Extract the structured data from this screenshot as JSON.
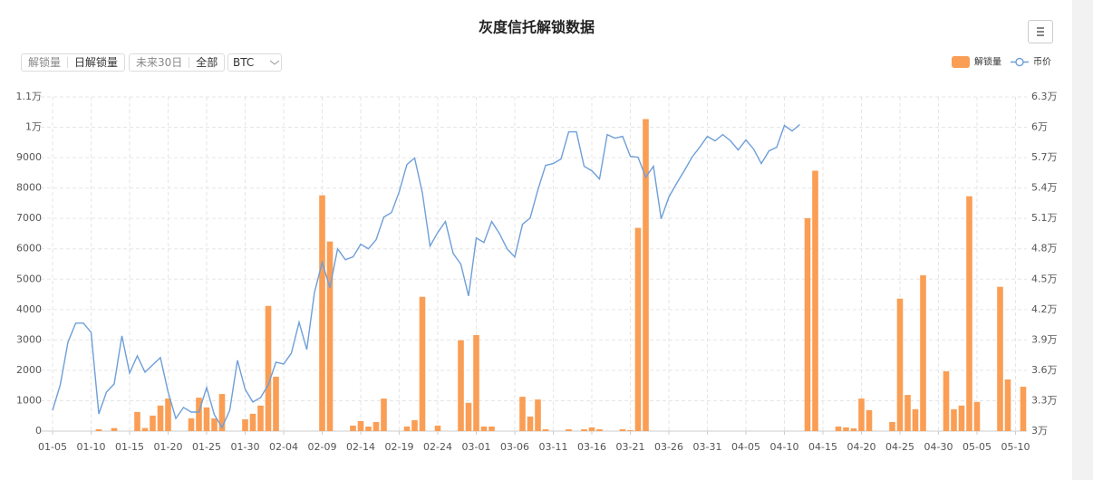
{
  "controls": {
    "unit_options": [
      "解锁量",
      "日解锁量"
    ],
    "range_options": [
      "未来30日",
      "全部"
    ],
    "coin": "BTC"
  },
  "chart_data": {
    "type": "combo",
    "title": "灰度信托解锁数据",
    "grid": true,
    "legend": "top-right",
    "categories": [
      "01-05",
      null,
      null,
      null,
      null,
      "01-10",
      null,
      null,
      null,
      null,
      "01-15",
      null,
      null,
      null,
      null,
      "01-20",
      null,
      null,
      null,
      null,
      "01-25",
      null,
      null,
      null,
      null,
      "01-30",
      null,
      null,
      null,
      null,
      "02-04",
      null,
      null,
      null,
      null,
      "02-09",
      null,
      null,
      null,
      null,
      "02-14",
      null,
      null,
      null,
      null,
      "02-19",
      null,
      null,
      null,
      null,
      "02-24",
      null,
      null,
      null,
      null,
      "03-01",
      null,
      null,
      null,
      null,
      "03-06",
      null,
      null,
      null,
      null,
      "03-11",
      null,
      null,
      null,
      null,
      "03-16",
      null,
      null,
      null,
      null,
      "03-21",
      null,
      null,
      null,
      null,
      "03-26",
      null,
      null,
      null,
      null,
      "03-31",
      null,
      null,
      null,
      null,
      "04-05",
      null,
      null,
      null,
      null,
      "04-10",
      null,
      null,
      null,
      null,
      "04-15",
      null,
      null,
      null,
      null,
      "04-20",
      null,
      null,
      null,
      null,
      "04-25",
      null,
      null,
      null,
      null,
      "04-30",
      null,
      null,
      null,
      null,
      "05-05",
      null,
      null,
      null,
      null,
      "05-10",
      null
    ],
    "ylim": [
      0,
      11000
    ],
    "yticks": [
      0,
      1000,
      2000,
      3000,
      4000,
      5000,
      6000,
      7000,
      8000,
      9000,
      {
        "value": 10000,
        "label": "1万"
      },
      {
        "value": 11000,
        "label": "1.1万"
      }
    ],
    "y2lim": [
      30000,
      63000
    ],
    "y2ticks": [
      {
        "value": 30000,
        "label": "3万"
      },
      {
        "value": 33000,
        "label": "3.3万"
      },
      {
        "value": 36000,
        "label": "3.6万"
      },
      {
        "value": 39000,
        "label": "3.9万"
      },
      {
        "value": 42000,
        "label": "4.2万"
      },
      {
        "value": 45000,
        "label": "4.5万"
      },
      {
        "value": 48000,
        "label": "4.8万"
      },
      {
        "value": 51000,
        "label": "5.1万"
      },
      {
        "value": 54000,
        "label": "5.4万"
      },
      {
        "value": 57000,
        "label": "5.7万"
      },
      {
        "value": 60000,
        "label": "6万"
      },
      {
        "value": 63000,
        "label": "6.3万"
      }
    ],
    "series": [
      {
        "name": "解锁量",
        "type": "bar",
        "color": "#fa9e55",
        "values": [
          0,
          0,
          0,
          0,
          0,
          0,
          60,
          0,
          100,
          0,
          0,
          630,
          100,
          510,
          840,
          1070,
          0,
          0,
          420,
          1100,
          780,
          420,
          1220,
          0,
          0,
          390,
          570,
          840,
          4120,
          1790,
          0,
          0,
          0,
          0,
          0,
          7760,
          6240,
          0,
          0,
          180,
          330,
          150,
          300,
          1070,
          0,
          0,
          150,
          360,
          4420,
          0,
          180,
          0,
          0,
          2990,
          930,
          3160,
          150,
          150,
          0,
          0,
          0,
          1130,
          480,
          1040,
          60,
          0,
          0,
          60,
          0,
          60,
          120,
          60,
          0,
          0,
          60,
          30,
          6690,
          10270,
          0,
          0,
          0,
          0,
          0,
          0,
          0,
          0,
          0,
          0,
          0,
          0,
          0,
          0,
          0,
          0,
          0,
          0,
          0,
          0,
          7010,
          8570,
          0,
          0,
          150,
          120,
          90,
          1070,
          690,
          0,
          0,
          300,
          4360,
          1190,
          720,
          5130,
          0,
          0,
          1970,
          720,
          840,
          7730,
          960,
          0,
          0,
          4750,
          1700,
          0,
          1460
        ]
      },
      {
        "name": "币价",
        "type": "line",
        "axis": "y2",
        "color": "#6e9fd8",
        "values": [
          32060,
          34570,
          38780,
          40660,
          40660,
          39760,
          31700,
          33850,
          34660,
          39400,
          35730,
          37430,
          35820,
          36540,
          37250,
          33850,
          31250,
          32330,
          31880,
          31880,
          34300,
          31610,
          30360,
          32060,
          36990,
          34120,
          32870,
          33310,
          34570,
          36810,
          36630,
          37700,
          40750,
          38060,
          43700,
          46660,
          44150,
          48000,
          46930,
          47200,
          48450,
          48000,
          48900,
          51140,
          51580,
          53640,
          56330,
          56960,
          53550,
          48270,
          49610,
          50690,
          47550,
          46480,
          43340,
          49070,
          48630,
          50690,
          49520,
          48000,
          47200,
          50420,
          51050,
          53820,
          56240,
          56420,
          56870,
          59550,
          59550,
          56150,
          55700,
          54900,
          59280,
          58930,
          59100,
          57130,
          57040,
          55070,
          56150,
          50960,
          53110,
          54450,
          55700,
          57040,
          58030,
          59100,
          58660,
          59280,
          58660,
          57760,
          58750,
          57850,
          56420,
          57670,
          58030,
          60180,
          59640,
          60270,
          null,
          null,
          null,
          null,
          null,
          null,
          null,
          null,
          null,
          null,
          null,
          null,
          null,
          null,
          null,
          null,
          null,
          null,
          null,
          null,
          null,
          null,
          null,
          null,
          null,
          null,
          null,
          null,
          null
        ]
      }
    ]
  }
}
